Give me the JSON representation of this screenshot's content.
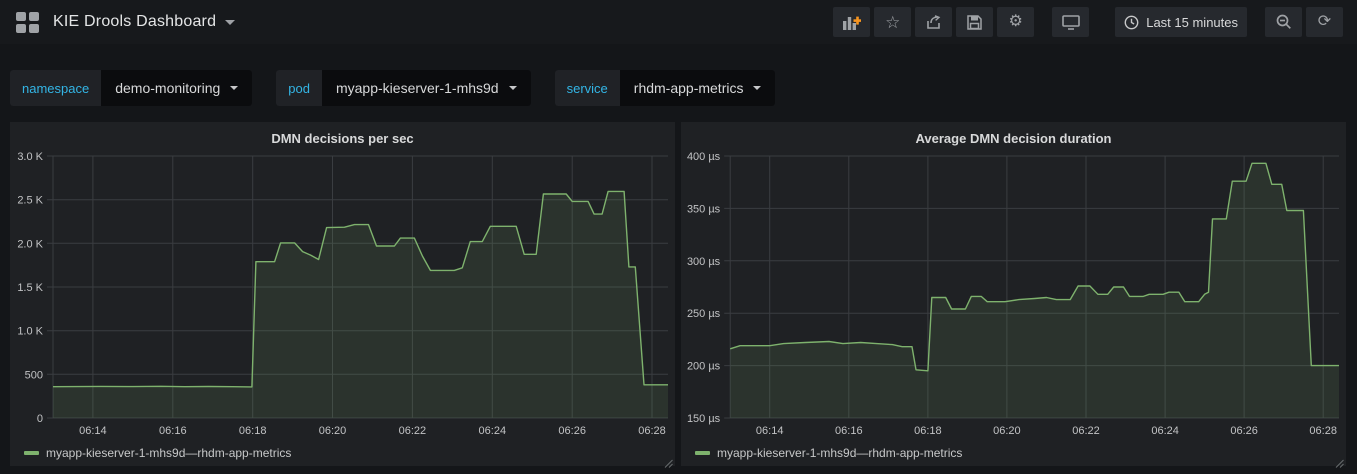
{
  "navbar": {
    "title": "KIE Drools Dashboard",
    "time_range_label": "Last 15 minutes"
  },
  "filters": [
    {
      "label": "namespace",
      "value": "demo-monitoring"
    },
    {
      "label": "pod",
      "value": "myapp-kieserver-1-mhs9d"
    },
    {
      "label": "service",
      "value": "rhdm-app-metrics"
    }
  ],
  "colors": {
    "accent_cyan": "#33b5e5",
    "series_green": "#7eb26d",
    "add_panel_orange": "#f79520",
    "grid_line": "#3a3d41",
    "tick_text": "#c2c3c5"
  },
  "chart_data": [
    {
      "type": "area",
      "title": "DMN decisions per sec",
      "xlim": [
        13.0,
        28.4
      ],
      "ylim": [
        0,
        3000
      ],
      "grid": true,
      "legend_position": "bottom-left",
      "xticks": [
        {
          "v": 14,
          "label": "06:14"
        },
        {
          "v": 16,
          "label": "06:16"
        },
        {
          "v": 18,
          "label": "06:18"
        },
        {
          "v": 20,
          "label": "06:20"
        },
        {
          "v": 22,
          "label": "06:22"
        },
        {
          "v": 24,
          "label": "06:24"
        },
        {
          "v": 26,
          "label": "06:26"
        },
        {
          "v": 28,
          "label": "06:28"
        }
      ],
      "yticks": [
        {
          "v": 0,
          "label": "0"
        },
        {
          "v": 500,
          "label": "500"
        },
        {
          "v": 1000,
          "label": "1.0 K"
        },
        {
          "v": 1500,
          "label": "1.5 K"
        },
        {
          "v": 2000,
          "label": "2.0 K"
        },
        {
          "v": 2500,
          "label": "2.5 K"
        },
        {
          "v": 3000,
          "label": "3.0 K"
        }
      ],
      "series": [
        {
          "name": "myapp-kieserver-1-mhs9d—rhdm-app-metrics",
          "color": "#7eb26d",
          "points": [
            [
              13.0,
              358
            ],
            [
              13.6,
              360
            ],
            [
              14.2,
              362
            ],
            [
              15.0,
              359
            ],
            [
              15.7,
              363
            ],
            [
              16.3,
              358
            ],
            [
              16.9,
              361
            ],
            [
              17.5,
              358
            ],
            [
              17.98,
              356
            ],
            [
              18.08,
              1790
            ],
            [
              18.55,
              1790
            ],
            [
              18.7,
              2005
            ],
            [
              19.05,
              2005
            ],
            [
              19.25,
              1905
            ],
            [
              19.45,
              1865
            ],
            [
              19.65,
              1815
            ],
            [
              19.85,
              2180
            ],
            [
              20.3,
              2185
            ],
            [
              20.55,
              2215
            ],
            [
              20.9,
              2215
            ],
            [
              21.1,
              1970
            ],
            [
              21.55,
              1970
            ],
            [
              21.7,
              2060
            ],
            [
              22.05,
              2060
            ],
            [
              22.25,
              1855
            ],
            [
              22.45,
              1690
            ],
            [
              23.05,
              1690
            ],
            [
              23.25,
              1720
            ],
            [
              23.45,
              2020
            ],
            [
              23.75,
              2020
            ],
            [
              23.95,
              2195
            ],
            [
              24.6,
              2195
            ],
            [
              24.8,
              1875
            ],
            [
              25.1,
              1875
            ],
            [
              25.28,
              2565
            ],
            [
              25.85,
              2565
            ],
            [
              26.0,
              2480
            ],
            [
              26.4,
              2480
            ],
            [
              26.55,
              2335
            ],
            [
              26.75,
              2335
            ],
            [
              26.9,
              2595
            ],
            [
              27.3,
              2595
            ],
            [
              27.42,
              1730
            ],
            [
              27.58,
              1730
            ],
            [
              27.8,
              380
            ],
            [
              28.4,
              380
            ]
          ]
        }
      ]
    },
    {
      "type": "area",
      "title": "Average DMN decision duration",
      "xlim": [
        13.0,
        28.4
      ],
      "ylim": [
        150,
        400
      ],
      "grid": true,
      "legend_position": "bottom-left",
      "xticks": [
        {
          "v": 14,
          "label": "06:14"
        },
        {
          "v": 16,
          "label": "06:16"
        },
        {
          "v": 18,
          "label": "06:18"
        },
        {
          "v": 20,
          "label": "06:20"
        },
        {
          "v": 22,
          "label": "06:22"
        },
        {
          "v": 24,
          "label": "06:24"
        },
        {
          "v": 26,
          "label": "06:26"
        },
        {
          "v": 28,
          "label": "06:28"
        }
      ],
      "yticks": [
        {
          "v": 150,
          "label": "150 µs"
        },
        {
          "v": 200,
          "label": "200 µs"
        },
        {
          "v": 250,
          "label": "250 µs"
        },
        {
          "v": 300,
          "label": "300 µs"
        },
        {
          "v": 350,
          "label": "350 µs"
        },
        {
          "v": 400,
          "label": "400 µs"
        }
      ],
      "series": [
        {
          "name": "myapp-kieserver-1-mhs9d—rhdm-app-metrics",
          "color": "#7eb26d",
          "points": [
            [
              13.0,
              216
            ],
            [
              13.25,
              219
            ],
            [
              14.0,
              219
            ],
            [
              14.35,
              221
            ],
            [
              14.9,
              222
            ],
            [
              15.5,
              223
            ],
            [
              15.85,
              221
            ],
            [
              16.3,
              222
            ],
            [
              16.7,
              221
            ],
            [
              17.1,
              220
            ],
            [
              17.35,
              218
            ],
            [
              17.6,
              218
            ],
            [
              17.7,
              196
            ],
            [
              18.0,
              195
            ],
            [
              18.1,
              265
            ],
            [
              18.45,
              265
            ],
            [
              18.6,
              254
            ],
            [
              18.95,
              254
            ],
            [
              19.1,
              266
            ],
            [
              19.35,
              266
            ],
            [
              19.5,
              261
            ],
            [
              19.95,
              261
            ],
            [
              20.3,
              263
            ],
            [
              20.7,
              264
            ],
            [
              21.0,
              265
            ],
            [
              21.25,
              263
            ],
            [
              21.6,
              263
            ],
            [
              21.8,
              276
            ],
            [
              22.1,
              276
            ],
            [
              22.3,
              268
            ],
            [
              22.55,
              268
            ],
            [
              22.7,
              275
            ],
            [
              22.95,
              275
            ],
            [
              23.1,
              266
            ],
            [
              23.45,
              266
            ],
            [
              23.6,
              268
            ],
            [
              23.95,
              268
            ],
            [
              24.1,
              270
            ],
            [
              24.35,
              270
            ],
            [
              24.5,
              261
            ],
            [
              24.85,
              261
            ],
            [
              25.0,
              268
            ],
            [
              25.1,
              270
            ],
            [
              25.2,
              340
            ],
            [
              25.55,
              340
            ],
            [
              25.7,
              376
            ],
            [
              26.05,
              376
            ],
            [
              26.2,
              393
            ],
            [
              26.55,
              393
            ],
            [
              26.7,
              373
            ],
            [
              26.95,
              373
            ],
            [
              27.08,
              348
            ],
            [
              27.5,
              348
            ],
            [
              27.7,
              200
            ],
            [
              28.4,
              200
            ]
          ]
        }
      ]
    }
  ]
}
